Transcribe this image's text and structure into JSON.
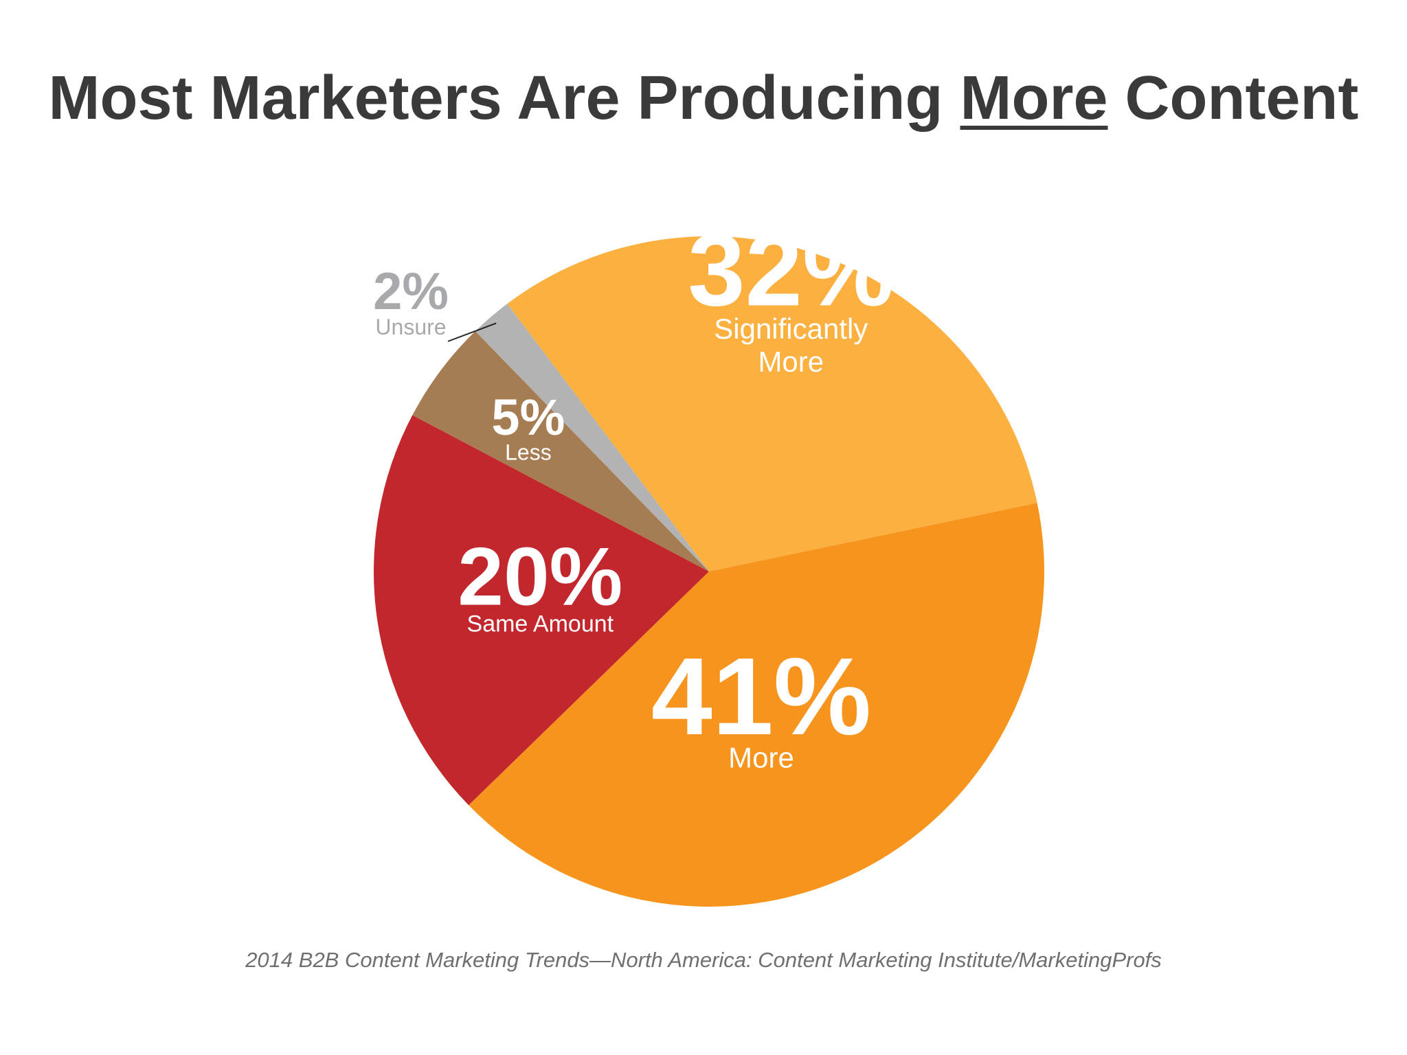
{
  "title": {
    "prefix": "Most Marketers Are Producing ",
    "emphasis": "More",
    "suffix": " Content"
  },
  "source": "2014 B2B Content Marketing Trends—North America: Content Marketing Institute/MarketingProfs",
  "chart_data": {
    "type": "pie",
    "title": "",
    "slices": [
      {
        "value_label": "32%",
        "label": [
          "Significantly",
          "More"
        ],
        "value": 32,
        "color": "#fbb040"
      },
      {
        "value_label": "41%",
        "label": [
          "More"
        ],
        "value": 41,
        "color": "#f7941d"
      },
      {
        "value_label": "20%",
        "label": [
          "Same Amount"
        ],
        "value": 20,
        "color": "#c1272d"
      },
      {
        "value_label": "5%",
        "label": [
          "Less"
        ],
        "value": 5,
        "color": "#a67c52"
      },
      {
        "value_label": "2%",
        "label": [
          "Unsure"
        ],
        "value": 2,
        "color": "#b3b3b3"
      }
    ]
  }
}
